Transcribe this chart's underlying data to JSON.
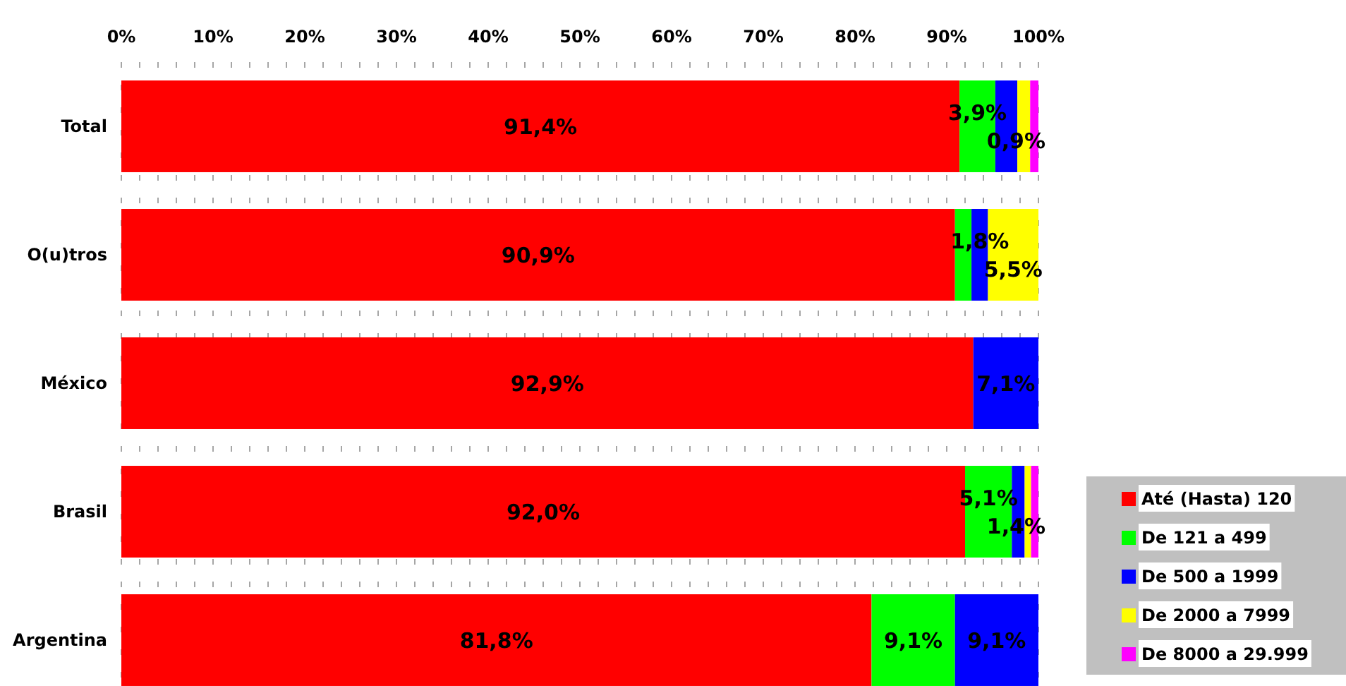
{
  "chart_data": {
    "type": "bar",
    "orientation": "horizontal",
    "stacked": true,
    "categories": [
      "Total",
      "O(u)tros",
      "México",
      "Brasil",
      "Argentina"
    ],
    "series": [
      {
        "name": "Até (Hasta) 120",
        "color": "#ff0000",
        "values": [
          91.4,
          90.9,
          92.9,
          92.0,
          81.8
        ],
        "value_labels": [
          "91,4%",
          "90,9%",
          "92,9%",
          "92,0%",
          "81,8%"
        ]
      },
      {
        "name": "De 121 a 499",
        "color": "#00ff00",
        "values": [
          3.9,
          1.8,
          null,
          5.1,
          9.1
        ],
        "value_labels": [
          "3,9%",
          null,
          null,
          "5,1%",
          "9,1%"
        ]
      },
      {
        "name": "De 500 a 1999",
        "color": "#0000ff",
        "values": [
          2.4,
          1.8,
          7.1,
          1.4,
          9.1
        ],
        "value_labels": [
          null,
          "1,8%",
          "7,1%",
          "1,4%",
          "9,1%"
        ]
      },
      {
        "name": "De 2000 a 7999",
        "color": "#ffff00",
        "values": [
          1.4,
          5.5,
          null,
          0.7,
          null
        ],
        "value_labels": [
          null,
          "5,5%",
          null,
          null,
          null
        ]
      },
      {
        "name": "De 8000 a 29.999",
        "color": "#ff00ff",
        "values": [
          0.9,
          null,
          null,
          0.8,
          null
        ],
        "value_labels": [
          "0,9%",
          null,
          null,
          null,
          null
        ]
      }
    ],
    "xlim": [
      0,
      100
    ],
    "xticks": [
      {
        "value": 0,
        "label": "0%"
      },
      {
        "value": 2,
        "label": null
      },
      {
        "value": 4,
        "label": null
      },
      {
        "value": 6,
        "label": null
      },
      {
        "value": 8,
        "label": null
      },
      {
        "value": 10,
        "label": "10%"
      },
      {
        "value": 12,
        "label": null
      },
      {
        "value": 14,
        "label": null
      },
      {
        "value": 16,
        "label": null
      },
      {
        "value": 18,
        "label": null
      },
      {
        "value": 20,
        "label": "20%"
      },
      {
        "value": 22,
        "label": null
      },
      {
        "value": 24,
        "label": null
      },
      {
        "value": 26,
        "label": null
      },
      {
        "value": 28,
        "label": null
      },
      {
        "value": 30,
        "label": "30%"
      },
      {
        "value": 32,
        "label": null
      },
      {
        "value": 34,
        "label": null
      },
      {
        "value": 36,
        "label": null
      },
      {
        "value": 38,
        "label": null
      },
      {
        "value": 40,
        "label": "40%"
      },
      {
        "value": 42,
        "label": null
      },
      {
        "value": 44,
        "label": null
      },
      {
        "value": 46,
        "label": null
      },
      {
        "value": 48,
        "label": null
      },
      {
        "value": 50,
        "label": "50%"
      },
      {
        "value": 52,
        "label": null
      },
      {
        "value": 54,
        "label": null
      },
      {
        "value": 56,
        "label": null
      },
      {
        "value": 58,
        "label": null
      },
      {
        "value": 60,
        "label": "60%"
      },
      {
        "value": 62,
        "label": null
      },
      {
        "value": 64,
        "label": null
      },
      {
        "value": 66,
        "label": null
      },
      {
        "value": 68,
        "label": null
      },
      {
        "value": 70,
        "label": "70%"
      },
      {
        "value": 72,
        "label": null
      },
      {
        "value": 74,
        "label": null
      },
      {
        "value": 76,
        "label": null
      },
      {
        "value": 78,
        "label": null
      },
      {
        "value": 80,
        "label": "80%"
      },
      {
        "value": 82,
        "label": null
      },
      {
        "value": 84,
        "label": null
      },
      {
        "value": 86,
        "label": null
      },
      {
        "value": 88,
        "label": null
      },
      {
        "value": 90,
        "label": "90%"
      },
      {
        "value": 92,
        "label": null
      },
      {
        "value": 94,
        "label": null
      },
      {
        "value": 96,
        "label": null
      },
      {
        "value": 98,
        "label": null
      },
      {
        "value": 100,
        "label": "100%"
      }
    ],
    "grid": "x",
    "legend": "bottom right"
  }
}
